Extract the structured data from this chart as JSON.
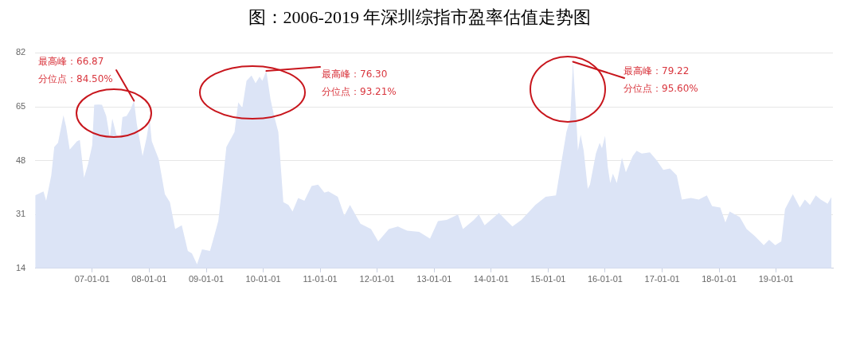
{
  "chart_data": {
    "type": "area",
    "title": "图：2006-2019 年深圳综指市盈率估值走势图",
    "x": [
      "2006-01-01",
      "2006-02-23",
      "2006-03-12",
      "2006-04-14",
      "2006-05-03",
      "2006-05-27",
      "2006-07-01",
      "2006-07-18",
      "2006-08-10",
      "2006-09-26",
      "2006-10-14",
      "2006-11-10",
      "2006-12-05",
      "2007-01-01",
      "2007-01-14",
      "2007-02-10",
      "2007-03-05",
      "2007-04-01",
      "2007-04-24",
      "2007-05-10",
      "2007-06-05",
      "2007-07-01",
      "2007-07-14",
      "2007-08-10",
      "2007-09-05",
      "2007-09-26",
      "2007-10-14",
      "2007-11-20",
      "2007-12-16",
      "2008-01-04",
      "2008-01-18",
      "2008-03-02",
      "2008-04-11",
      "2008-05-13",
      "2008-06-16",
      "2008-07-28",
      "2008-09-05",
      "2008-10-01",
      "2008-11-03",
      "2008-12-05",
      "2009-01-25",
      "2009-02-23",
      "2009-03-19",
      "2009-04-14",
      "2009-05-10",
      "2009-07-01",
      "2009-07-25",
      "2009-08-20",
      "2009-09-16",
      "2009-10-18",
      "2009-11-13",
      "2009-12-09",
      "2009-12-26",
      "2010-01-21",
      "2010-02-17",
      "2010-03-12",
      "2010-04-08",
      "2010-05-10",
      "2010-06-12",
      "2010-07-08",
      "2010-08-13",
      "2010-09-22",
      "2010-11-07",
      "2010-12-19",
      "2011-01-28",
      "2011-02-23",
      "2011-04-24",
      "2011-06-05",
      "2011-07-11",
      "2011-09-16",
      "2011-11-23",
      "2012-01-08",
      "2012-03-16",
      "2012-05-13",
      "2012-07-11",
      "2012-09-26",
      "2012-12-05",
      "2013-01-25",
      "2013-03-22",
      "2013-06-02",
      "2013-07-04",
      "2013-09-12",
      "2013-10-14",
      "2013-11-20",
      "2014-01-11",
      "2014-02-20",
      "2014-04-04",
      "2014-05-17",
      "2014-07-14",
      "2014-10-11",
      "2014-12-16",
      "2015-02-20",
      "2015-03-22",
      "2015-04-28",
      "2015-05-23",
      "2015-06-09",
      "2015-06-26",
      "2015-07-11",
      "2015-07-28",
      "2015-08-17",
      "2015-09-12",
      "2015-09-26",
      "2015-11-03",
      "2015-11-27",
      "2015-12-12",
      "2016-01-01",
      "2016-01-18",
      "2016-02-03",
      "2016-02-20",
      "2016-03-16",
      "2016-04-18",
      "2016-05-13",
      "2016-06-26",
      "2016-07-21",
      "2016-08-23",
      "2016-10-14",
      "2016-11-27",
      "2017-01-08",
      "2017-02-20",
      "2017-04-04",
      "2017-05-07",
      "2017-07-04",
      "2017-08-23",
      "2017-10-14",
      "2017-11-17",
      "2018-01-08",
      "2018-02-10",
      "2018-03-09",
      "2018-05-13",
      "2018-06-26",
      "2018-08-17",
      "2018-10-14",
      "2018-11-17",
      "2018-12-26",
      "2019-02-03",
      "2019-02-27",
      "2019-04-18",
      "2019-06-02",
      "2019-07-04",
      "2019-08-06",
      "2019-09-12",
      "2019-10-14",
      "2019-11-27",
      "2019-12-22"
    ],
    "series": [
      {
        "color": "#dce4f6",
        "values": [
          37.0,
          38.3,
          35.3,
          43.4,
          52.3,
          53.6,
          62.3,
          58.7,
          51.5,
          54.1,
          54.5,
          42.6,
          46.8,
          52.8,
          65.6,
          65.7,
          65.6,
          62.1,
          55.3,
          61.3,
          56.2,
          55.3,
          61.7,
          62.1,
          64.3,
          66.87,
          59.6,
          49.4,
          55.3,
          61.1,
          54.1,
          48.5,
          37.4,
          34.9,
          26.4,
          27.6,
          19.5,
          18.7,
          15.3,
          20.0,
          19.5,
          24.6,
          28.9,
          40.0,
          52.3,
          57.0,
          66.4,
          64.7,
          73.2,
          74.9,
          72.4,
          74.5,
          73.2,
          76.3,
          67.3,
          62.1,
          57.0,
          34.9,
          34.0,
          31.9,
          36.2,
          35.3,
          40.0,
          40.4,
          37.9,
          38.3,
          36.6,
          30.6,
          34.0,
          28.1,
          26.4,
          22.5,
          26.4,
          27.2,
          25.9,
          25.5,
          23.4,
          28.9,
          29.3,
          31.0,
          26.4,
          29.3,
          31.0,
          27.6,
          29.8,
          31.5,
          29.3,
          27.2,
          29.3,
          34.0,
          36.6,
          37.0,
          46.0,
          57.0,
          61.3,
          79.22,
          65.6,
          51.1,
          56.2,
          51.1,
          39.1,
          40.4,
          50.2,
          53.6,
          51.9,
          55.8,
          46.0,
          40.9,
          43.9,
          40.9,
          48.9,
          44.3,
          49.4,
          51.1,
          50.2,
          50.6,
          48.1,
          45.1,
          45.5,
          43.4,
          35.7,
          36.2,
          35.7,
          37.0,
          33.6,
          33.2,
          28.5,
          31.9,
          30.2,
          26.4,
          24.2,
          21.3,
          23.0,
          21.3,
          22.5,
          32.7,
          37.4,
          33.2,
          35.7,
          34.0,
          37.0,
          35.7,
          34.4,
          36.6
        ]
      }
    ],
    "xlim": [
      "2006-01-01",
      "2019-12-31"
    ],
    "xticks": [
      {
        "value": "2007-01-01",
        "label": "07-01-01"
      },
      {
        "value": "2008-01-01",
        "label": "08-01-01"
      },
      {
        "value": "2009-01-01",
        "label": "09-01-01"
      },
      {
        "value": "2010-01-01",
        "label": "10-01-01"
      },
      {
        "value": "2011-01-01",
        "label": "11-01-01"
      },
      {
        "value": "2012-01-01",
        "label": "12-01-01"
      },
      {
        "value": "2013-01-01",
        "label": "13-01-01"
      },
      {
        "value": "2014-01-01",
        "label": "14-01-01"
      },
      {
        "value": "2015-01-01",
        "label": "15-01-01"
      },
      {
        "value": "2016-01-01",
        "label": "16-01-01"
      },
      {
        "value": "2017-01-01",
        "label": "17-01-01"
      },
      {
        "value": "2018-01-01",
        "label": "18-01-01"
      },
      {
        "value": "2019-01-01",
        "label": "19-01-01"
      }
    ],
    "ylim": [
      14,
      82
    ],
    "yticks": [
      14,
      31,
      48,
      65,
      82
    ],
    "grid": "y",
    "annotations": [
      "最高峰：66.87",
      {
        "text": "分位点：84.50%",
        "x": "2007-09-26",
        "y": 66.87
      },
      {
        "text": "最高峰：76.30",
        "x": "2010-01-21",
        "y": 76.3
      },
      "分位点：93.21%",
      {
        "text": "最高峰：79.22",
        "x": "2015-06-09",
        "y": 79.22
      },
      "分位点：95.60%"
    ]
  }
}
